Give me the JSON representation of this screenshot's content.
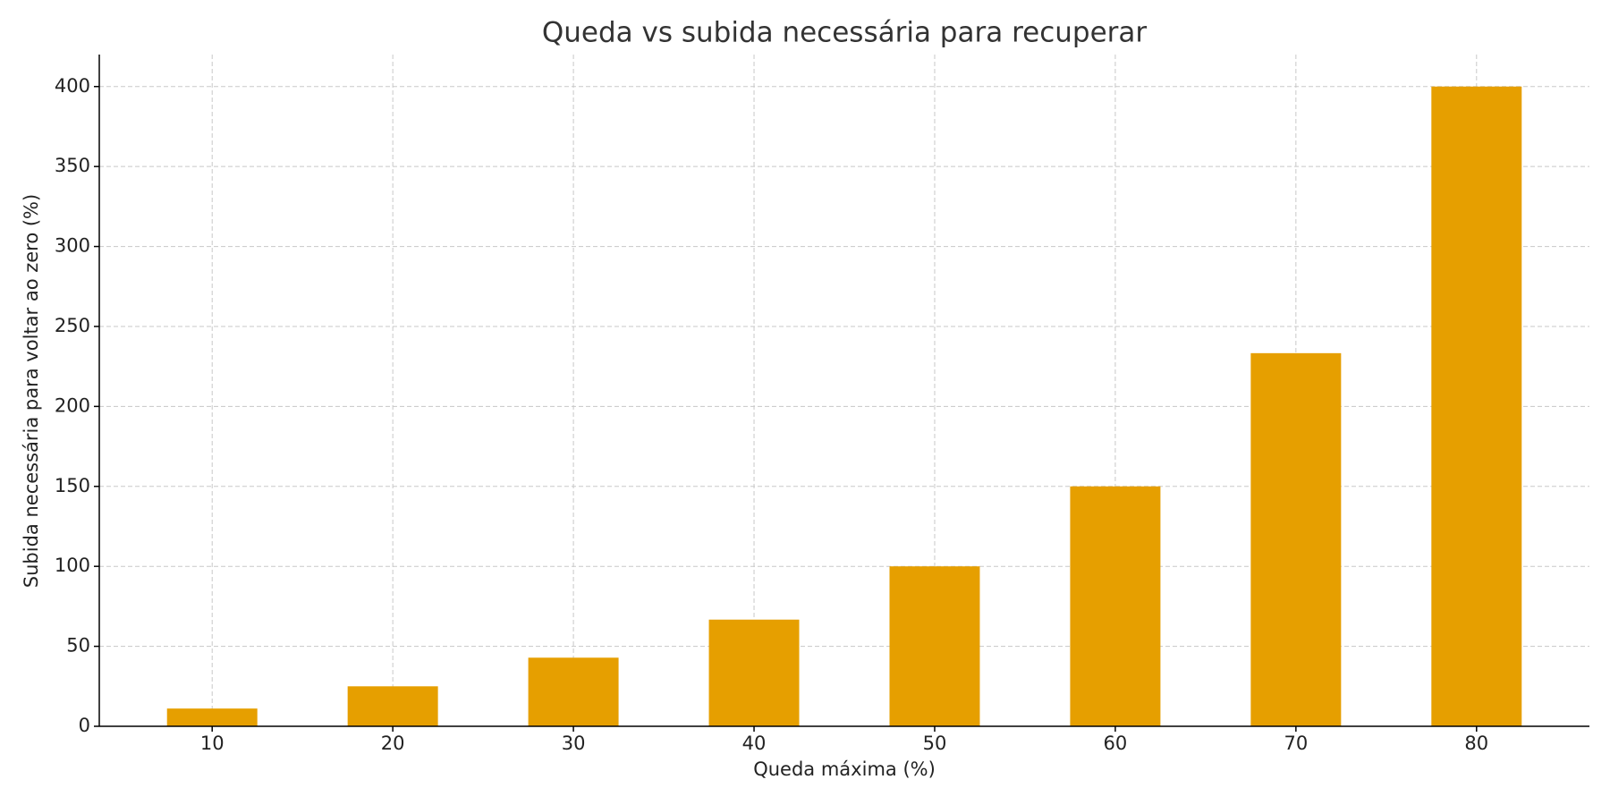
{
  "chart_data": {
    "type": "bar",
    "title": "Queda vs subida necessária para recuperar",
    "x_label": "Queda máxima (%)",
    "y_label": "Subida necessária para voltar ao zero (%)",
    "categories": [
      "10",
      "20",
      "30",
      "40",
      "50",
      "60",
      "70",
      "80"
    ],
    "values": [
      11.1,
      25,
      42.9,
      66.7,
      100,
      150,
      233.3,
      400
    ],
    "color": "#e69f00",
    "ylim": [
      0,
      420
    ],
    "yticks": [
      0,
      50,
      100,
      150,
      200,
      250,
      300,
      350,
      400
    ],
    "grid": true
  }
}
